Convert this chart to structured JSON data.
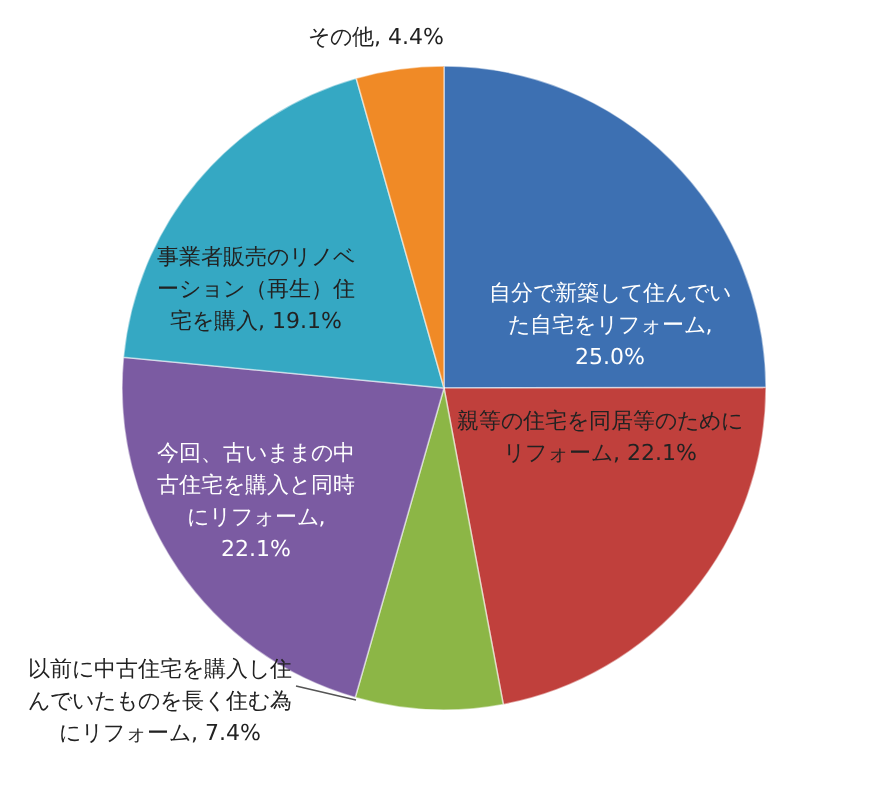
{
  "chart_data": {
    "type": "pie",
    "categories": [
      "自分で新築して住んでいた自宅をリフォーム",
      "親等の住宅を同居等のためにリフォーム",
      "以前に中古住宅を購入し住んでいたものを長く住む為にリフォーム",
      "今回、古いままの中古住宅を購入と同時にリフォーム",
      "事業者販売のリノベーション（再生）住宅を購入",
      "その他"
    ],
    "values": [
      25.0,
      22.1,
      7.4,
      22.1,
      19.1,
      4.4
    ],
    "value_labels": [
      ", 25.0%",
      ", 22.1%",
      ", 7.4%",
      ", 22.1%",
      ", 19.1%",
      ", 4.4%"
    ],
    "colors": [
      "#3d70b2",
      "#c0403c",
      "#8cb646",
      "#7b5ba2",
      "#35a8c3",
      "#f08a26"
    ],
    "legend": false
  }
}
